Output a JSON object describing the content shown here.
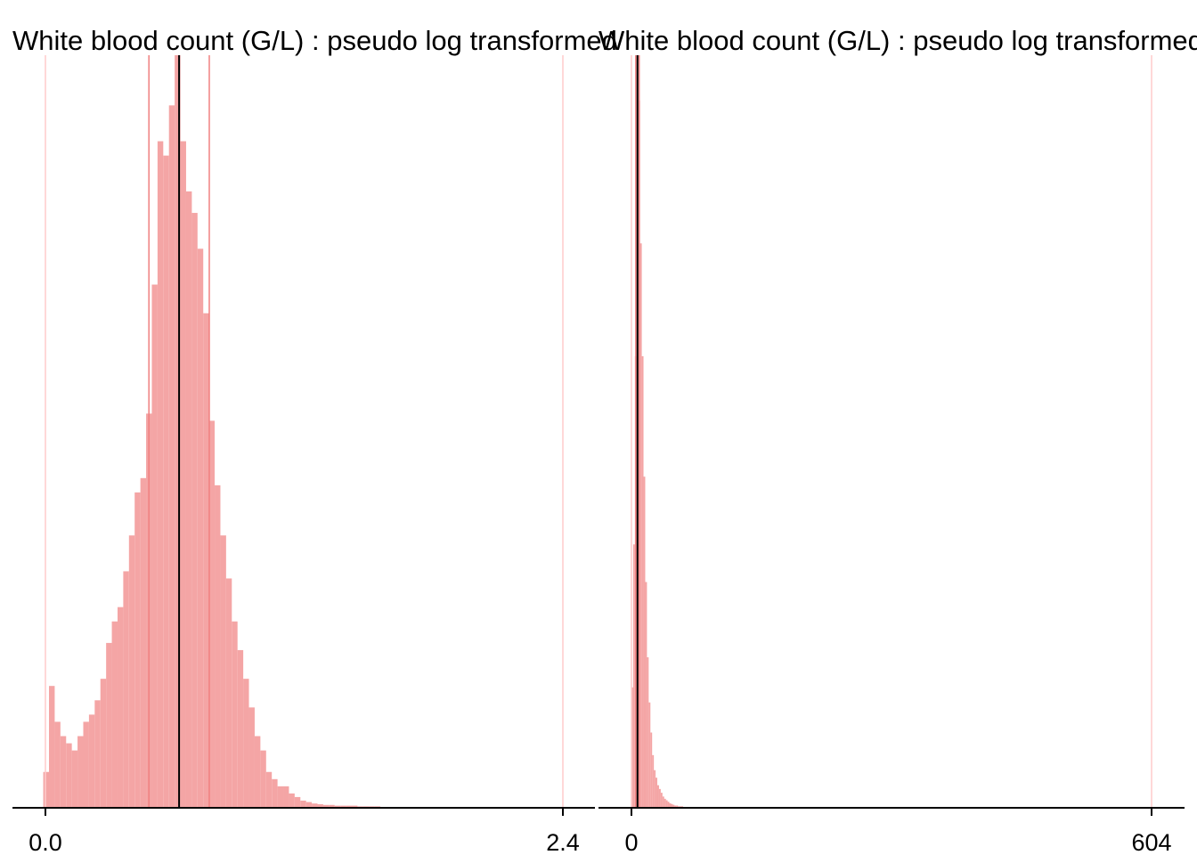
{
  "colors": {
    "bar_fill": "#f4a5a5",
    "ref_line": "#ffcccc",
    "quartile_line": "#f08080",
    "median_line": "#000000",
    "axis": "#000000"
  },
  "chart_data": [
    {
      "type": "bar",
      "title": "White blood count (G/L) : pseudo log transformed",
      "xlabel": "",
      "ylabel": "",
      "xlim": [
        0.0,
        2.4
      ],
      "x_tick_labels": [
        "0.0",
        "2.4"
      ],
      "x_ticks": [
        0.0,
        2.4
      ],
      "reference_lines": [
        0.0,
        2.4
      ],
      "quartile_lines": [
        0.48,
        0.76
      ],
      "median": 0.62,
      "grid": false,
      "bin_width": 0.0265,
      "bin_starts": [
        -0.01,
        0.0165,
        0.043,
        0.0695,
        0.096,
        0.1225,
        0.149,
        0.1755,
        0.202,
        0.2285,
        0.255,
        0.2815,
        0.308,
        0.3345,
        0.361,
        0.3875,
        0.414,
        0.4405,
        0.467,
        0.4935,
        0.52,
        0.5465,
        0.573,
        0.5995,
        0.626,
        0.6525,
        0.679,
        0.7055,
        0.732,
        0.7585,
        0.785,
        0.8115,
        0.838,
        0.8645,
        0.891,
        0.9175,
        0.944,
        0.9705,
        0.997,
        1.0235,
        1.05,
        1.0765,
        1.103,
        1.1295,
        1.156,
        1.1825,
        1.209,
        1.2355,
        1.262,
        1.2885,
        1.315,
        1.3415,
        1.368,
        1.3945,
        1.421,
        1.4475,
        1.474,
        1.5005,
        1.527,
        1.5535,
        1.58,
        1.6065,
        1.633,
        1.6595,
        1.686,
        1.7125,
        1.739,
        1.7655,
        1.792,
        1.8185,
        1.845,
        1.8715,
        1.898,
        1.9245,
        1.951,
        1.9775,
        2.004,
        2.0305,
        2.057,
        2.0835,
        2.11,
        2.1365,
        2.163,
        2.1895,
        2.216,
        2.2425,
        2.269,
        2.2955,
        2.322,
        2.3485,
        2.375
      ],
      "counts": [
        5,
        17,
        12,
        10,
        9,
        8,
        10,
        12,
        13,
        15,
        18,
        23,
        26,
        28,
        33,
        38,
        44,
        46,
        55,
        73,
        93,
        91,
        98,
        105,
        93,
        86,
        83,
        78,
        69,
        54,
        45,
        38,
        32,
        26,
        22,
        18,
        14,
        10,
        8,
        5,
        4,
        3,
        3,
        2,
        1.5,
        1,
        0.8,
        0.6,
        0.5,
        0.4,
        0.4,
        0.3,
        0.3,
        0.3,
        0.3,
        0.2,
        0.2,
        0.2,
        0.2,
        0.1,
        0.1,
        0.1,
        0.1,
        0.1,
        0.1,
        0.1,
        0.1,
        0.1,
        0.1,
        0.1,
        0.1,
        0.1,
        0.1,
        0.1,
        0.1,
        0.1,
        0.1,
        0.1,
        0.1,
        0,
        0,
        0,
        0,
        0,
        0,
        0,
        0,
        0,
        0,
        0,
        0.1
      ]
    },
    {
      "type": "bar",
      "title": "White blood count (G/L) : pseudo log transformed",
      "xlabel": "",
      "ylabel": "",
      "xlim": [
        0,
        604
      ],
      "x_tick_labels": [
        "0",
        "604"
      ],
      "x_ticks": [
        0,
        604
      ],
      "reference_lines": [
        0,
        604
      ],
      "quartile_lines": [
        5,
        9
      ],
      "median": 7,
      "grid": false,
      "bin_width": 2,
      "bin_starts": [
        0,
        2,
        4,
        6,
        8,
        10,
        12,
        14,
        16,
        18,
        20,
        22,
        24,
        26,
        28,
        30,
        32,
        34,
        36,
        38,
        40,
        42,
        44,
        46,
        48,
        50,
        52,
        54,
        56,
        58,
        60,
        62,
        64,
        66,
        68,
        70,
        72,
        74,
        76,
        78,
        80
      ],
      "counts": [
        16,
        35,
        60,
        100,
        94,
        75,
        60,
        44,
        30,
        20,
        14,
        10,
        7,
        5,
        4,
        3,
        2.5,
        2,
        1.5,
        1.2,
        1,
        0.8,
        0.6,
        0.5,
        0.4,
        0.3,
        0.3,
        0.2,
        0.2,
        0.2,
        0.1,
        0.1,
        0.1,
        0.1,
        0.1,
        0.1,
        0.1,
        0.1,
        0.1,
        0.1,
        0.1
      ]
    }
  ]
}
